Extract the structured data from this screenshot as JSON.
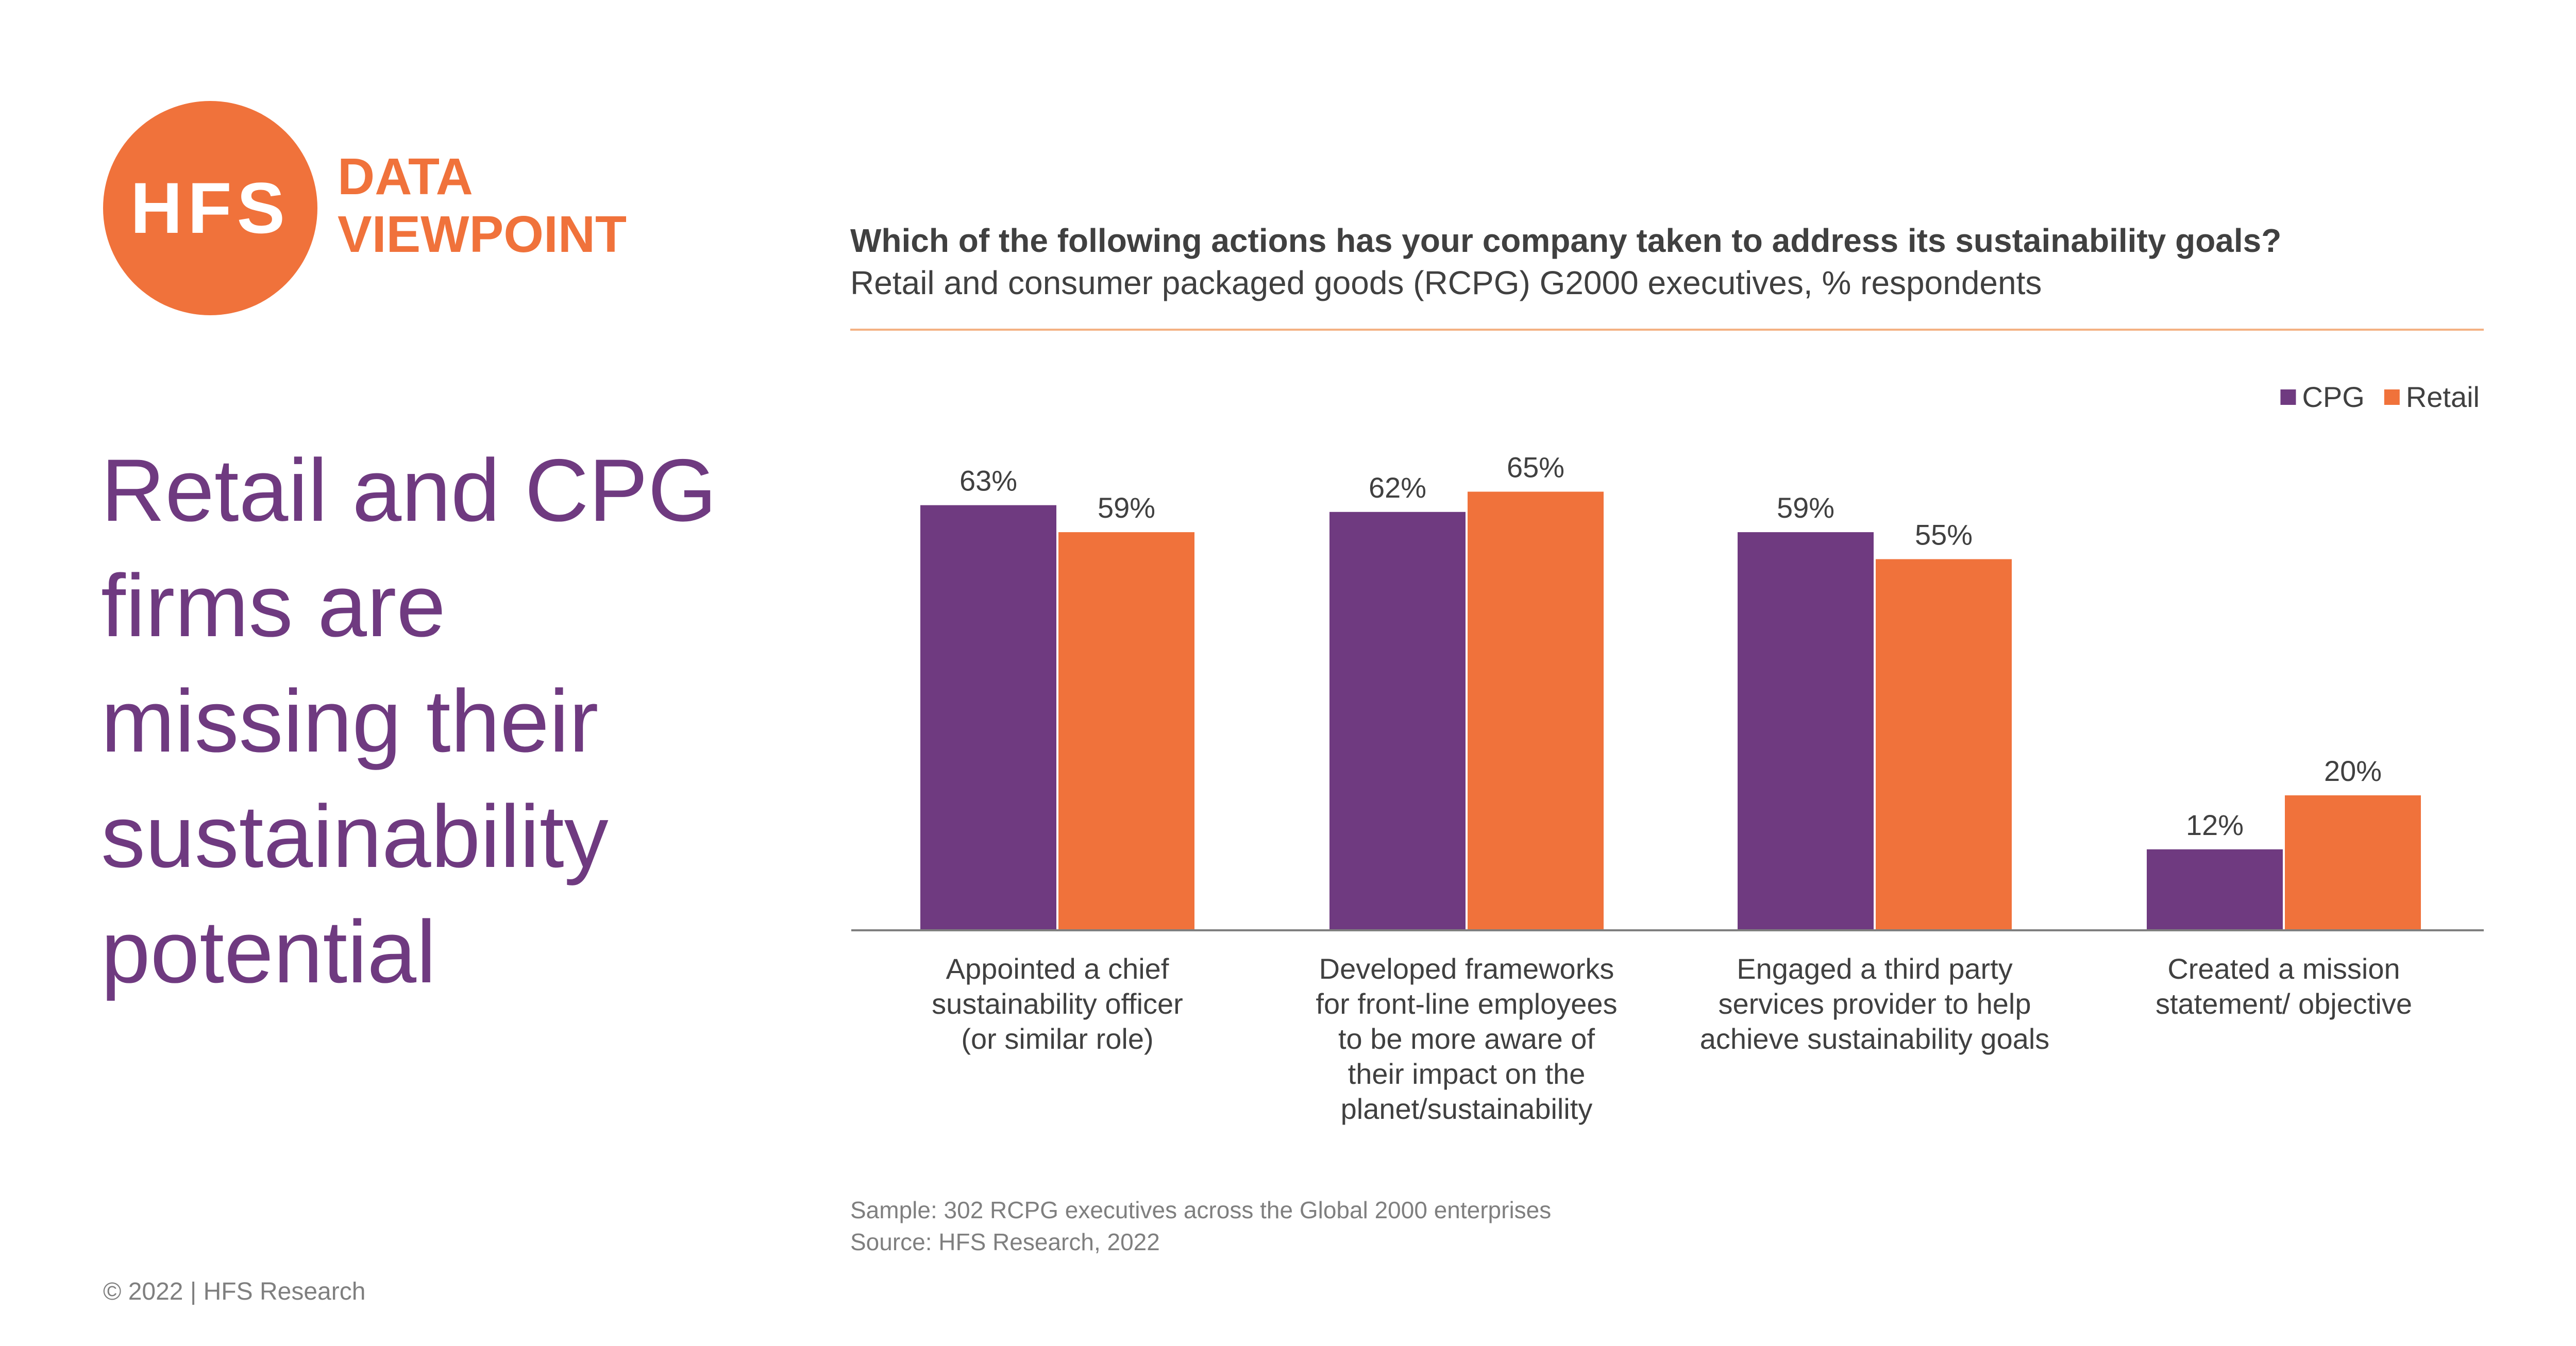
{
  "brand": {
    "logo_text": "HFS",
    "tag_line1": "DATA",
    "tag_line2": "VIEWPOINT"
  },
  "headline": "Retail and CPG firms are missing their sustainability potential",
  "copyright": "© 2022 | HFS Research",
  "notes": {
    "sample": "Sample: 302 RCPG executives across the Global 2000 enterprises",
    "source": "Source: HFS Research, 2022"
  },
  "colors": {
    "brand_orange": "#F0723B",
    "headline_purple": "#6F3A80",
    "cpg": "#6F3A80",
    "retail": "#F0723B"
  },
  "chart_data": {
    "type": "bar",
    "title": "Which of the following actions has your company taken to address its sustainability goals?",
    "subtitle": "Retail and consumer packaged goods (RCPG) G2000 executives, % respondents",
    "categories": [
      [
        "Appointed a chief",
        "sustainability officer",
        "(or similar role)"
      ],
      [
        "Developed frameworks",
        "for front-line employees",
        "to be more aware of",
        "their impact on the",
        "planet/sustainability"
      ],
      [
        "Engaged a third party",
        "services provider to help",
        "achieve sustainability goals"
      ],
      [
        "Created a mission",
        "statement/ objective"
      ]
    ],
    "series": [
      {
        "name": "CPG",
        "values": [
          63,
          62,
          59,
          12
        ],
        "labels": [
          "63%",
          "62%",
          "59%",
          "12%"
        ]
      },
      {
        "name": "Retail",
        "values": [
          59,
          65,
          55,
          20
        ],
        "labels": [
          "59%",
          "65%",
          "55%",
          "20%"
        ]
      }
    ],
    "ylim": [
      0,
      100
    ],
    "grid": false,
    "legend_position": "top-right"
  }
}
